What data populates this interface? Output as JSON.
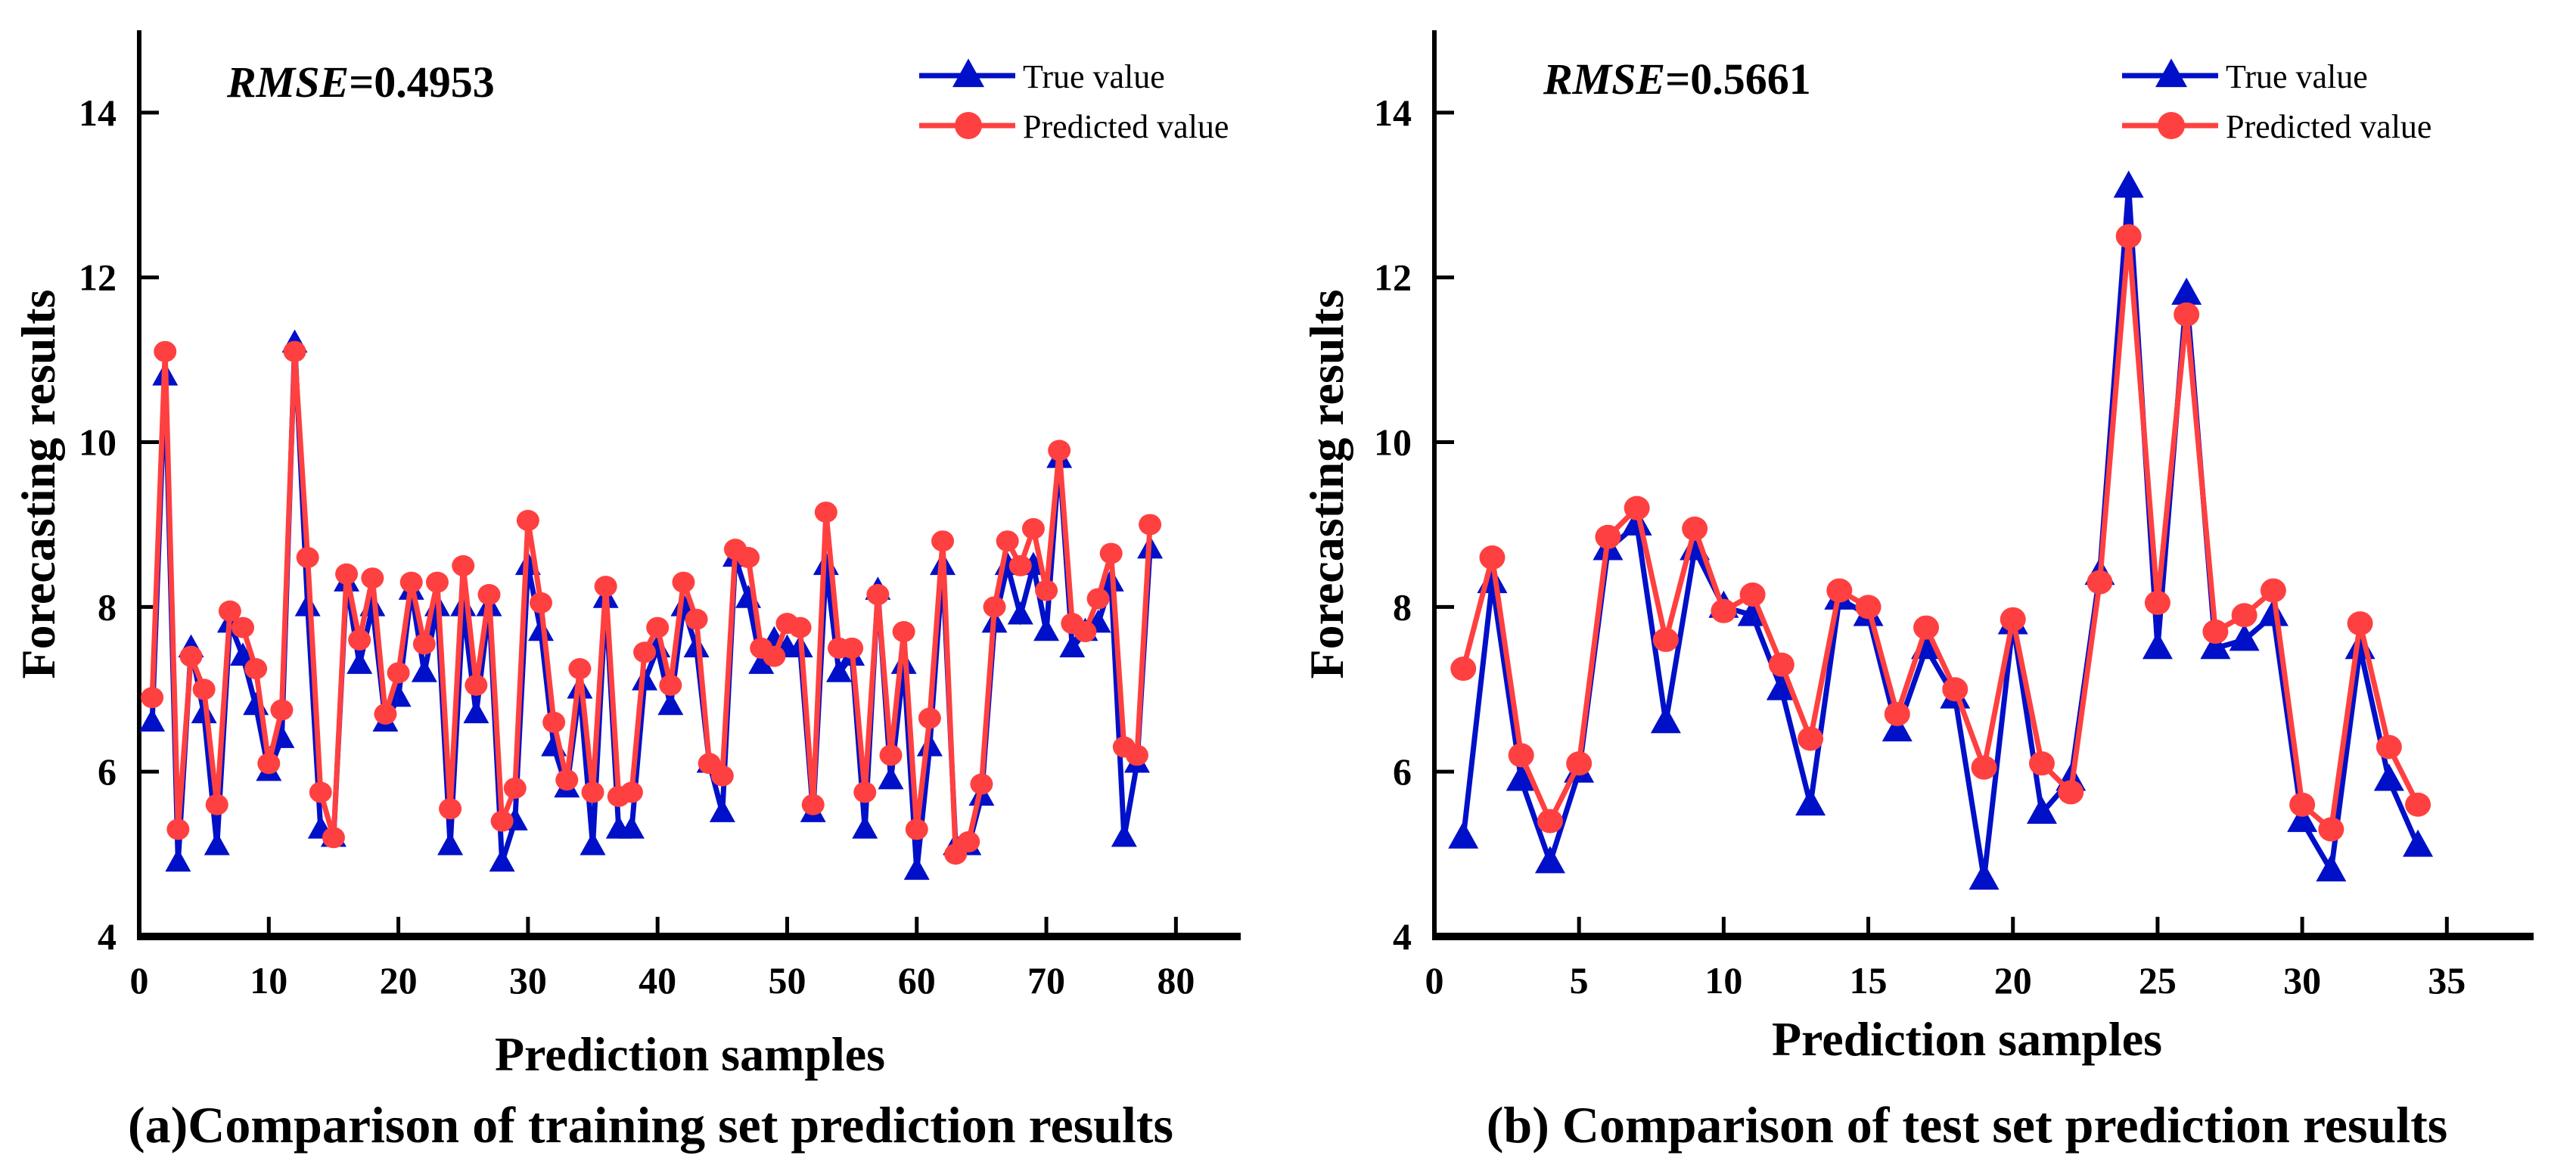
{
  "colors": {
    "true": "#0010C8",
    "pred": "#FF4040",
    "axis": "#000000"
  },
  "chart_data": [
    {
      "type": "line",
      "caption": "(a)Comparison of training set prediction results",
      "rmse_label": "RMSE",
      "rmse_value": "=0.4953",
      "xlabel": "Prediction samples",
      "ylabel": "Forecasting results",
      "xlim": [
        0,
        85
      ],
      "ylim": [
        4,
        15
      ],
      "xticks": [
        0,
        10,
        20,
        30,
        40,
        50,
        60,
        70,
        80
      ],
      "yticks": [
        4,
        6,
        8,
        10,
        12,
        14
      ],
      "legend_position": "top-right",
      "series": [
        {
          "name": "True value",
          "marker": "triangle",
          "values": [
            6.6,
            10.8,
            4.9,
            7.5,
            6.7,
            5.1,
            7.8,
            7.4,
            6.8,
            6.0,
            6.4,
            11.2,
            8.0,
            5.3,
            5.2,
            8.3,
            7.3,
            8.0,
            6.6,
            6.9,
            8.2,
            7.2,
            8.0,
            5.1,
            8.0,
            6.7,
            8.0,
            4.9,
            5.4,
            8.5,
            7.7,
            6.3,
            5.8,
            7.0,
            5.1,
            8.1,
            5.3,
            5.3,
            7.1,
            7.5,
            6.8,
            8.0,
            7.5,
            6.1,
            5.5,
            8.6,
            8.1,
            7.3,
            7.6,
            7.5,
            7.5,
            5.5,
            8.5,
            7.2,
            7.4,
            5.3,
            8.2,
            5.9,
            7.3,
            4.8,
            6.3,
            8.5,
            5.1,
            5.1,
            5.7,
            7.8,
            8.5,
            7.9,
            8.5,
            7.7,
            9.8,
            7.5,
            7.7,
            7.8,
            8.3,
            5.2,
            6.1,
            8.7
          ]
        },
        {
          "name": "Predicted value",
          "marker": "circle",
          "values": [
            6.9,
            11.1,
            5.3,
            7.4,
            7.0,
            5.6,
            7.95,
            7.75,
            7.25,
            6.1,
            6.75,
            11.1,
            8.6,
            5.75,
            5.2,
            8.4,
            7.6,
            8.35,
            6.7,
            7.2,
            8.3,
            7.55,
            8.3,
            5.55,
            8.5,
            7.05,
            8.15,
            5.4,
            5.8,
            9.05,
            8.05,
            6.6,
            5.9,
            7.25,
            5.75,
            8.25,
            5.7,
            5.75,
            7.45,
            7.75,
            7.05,
            8.3,
            7.85,
            6.1,
            5.95,
            8.7,
            8.6,
            7.5,
            7.4,
            7.8,
            7.75,
            5.6,
            9.15,
            7.5,
            7.5,
            5.75,
            8.15,
            6.2,
            7.7,
            5.3,
            6.65,
            8.8,
            5.0,
            5.15,
            5.85,
            8.0,
            8.8,
            8.5,
            8.95,
            8.2,
            9.9,
            7.8,
            7.7,
            8.1,
            8.65,
            6.3,
            6.2,
            9.0
          ]
        }
      ]
    },
    {
      "type": "line",
      "caption": "(b) Comparison of test set prediction results",
      "rmse_label": "RMSE",
      "rmse_value": "=0.5661",
      "xlabel": "Prediction samples",
      "ylabel": "Forecasting results",
      "xlim": [
        0,
        38
      ],
      "ylim": [
        4,
        15
      ],
      "xticks": [
        0,
        5,
        10,
        15,
        20,
        25,
        30,
        35
      ],
      "yticks": [
        4,
        6,
        8,
        10,
        12,
        14
      ],
      "legend_position": "top-right",
      "series": [
        {
          "name": "True value",
          "marker": "triangle",
          "values": [
            5.2,
            8.3,
            5.9,
            4.9,
            6.0,
            8.7,
            9.0,
            6.6,
            8.7,
            8.0,
            7.9,
            7.0,
            5.6,
            8.1,
            7.9,
            6.5,
            7.5,
            6.9,
            4.7,
            7.8,
            5.5,
            5.9,
            8.4,
            13.1,
            7.5,
            11.8,
            7.5,
            7.6,
            7.9,
            5.4,
            4.8,
            7.5,
            5.9,
            5.1
          ]
        },
        {
          "name": "Predicted value",
          "marker": "circle",
          "values": [
            7.25,
            8.6,
            6.2,
            5.4,
            6.1,
            8.85,
            9.2,
            7.6,
            8.95,
            7.95,
            8.15,
            7.3,
            6.4,
            8.2,
            8.0,
            6.7,
            7.75,
            7.0,
            6.05,
            7.85,
            6.1,
            5.75,
            8.3,
            12.5,
            8.05,
            11.55,
            7.7,
            7.9,
            8.2,
            5.6,
            5.3,
            7.8,
            6.3,
            5.6
          ]
        }
      ]
    }
  ]
}
